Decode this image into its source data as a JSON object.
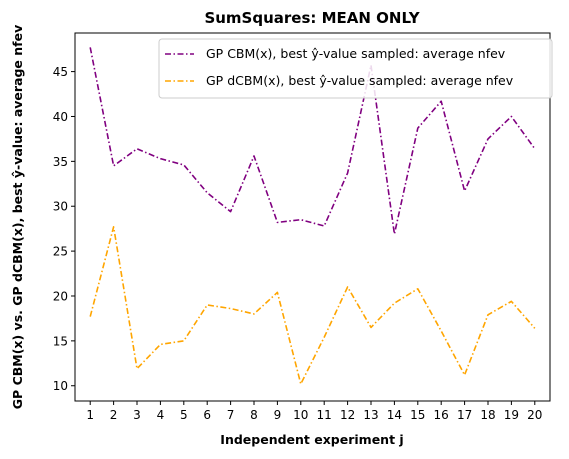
{
  "chart_data": {
    "type": "line",
    "title": "SumSquares: MEAN ONLY",
    "xlabel": "Independent experiment j",
    "ylabel": "GP CBM(x) vs. GP dCBM(x), best ŷ-value: average nfev",
    "x": [
      1,
      2,
      3,
      4,
      5,
      6,
      7,
      8,
      9,
      10,
      11,
      12,
      13,
      14,
      15,
      16,
      17,
      18,
      19,
      20
    ],
    "xlim": [
      0.35,
      20.65
    ],
    "ylim": [
      8.3,
      49.3
    ],
    "yticks": [
      10,
      15,
      20,
      25,
      30,
      35,
      40,
      45
    ],
    "legend_position": "top-right",
    "grid": false,
    "series": [
      {
        "name": "GP CBM(x), best ŷ-value sampled: average nfev",
        "color": "#800080",
        "linestyle": "dashdot",
        "values": [
          47.7,
          34.5,
          36.4,
          35.3,
          34.6,
          31.5,
          29.4,
          35.6,
          28.2,
          28.5,
          27.8,
          33.7,
          45.7,
          26.9,
          38.7,
          41.7,
          31.7,
          37.5,
          40.0,
          36.4
        ]
      },
      {
        "name": "GP dCBM(x), best ŷ-value sampled: average nfev",
        "color": "#ffa500",
        "linestyle": "dashdot",
        "values": [
          17.7,
          27.7,
          11.9,
          14.6,
          15.0,
          19.0,
          18.6,
          18.0,
          20.4,
          10.2,
          15.4,
          21.0,
          16.5,
          19.2,
          20.8,
          16.1,
          11.2,
          17.9,
          19.4,
          16.4
        ]
      }
    ]
  }
}
